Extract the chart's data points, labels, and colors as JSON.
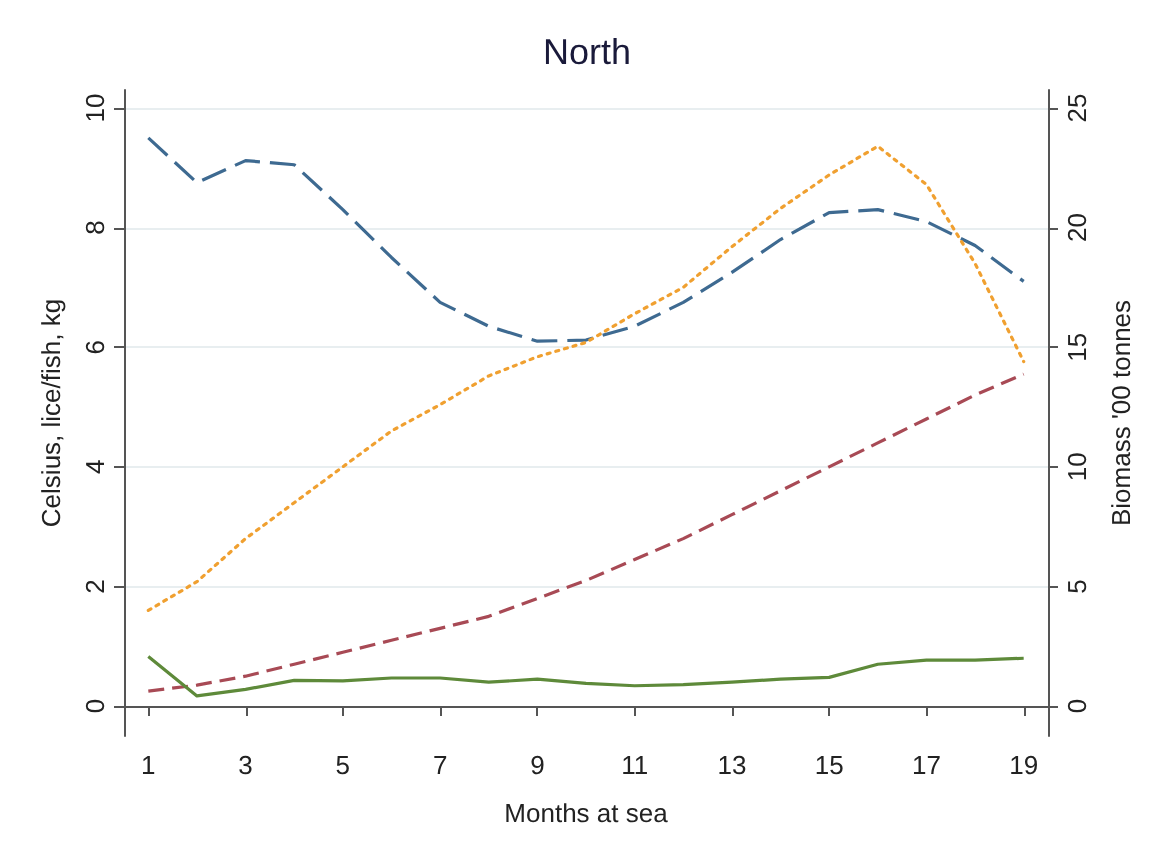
{
  "chart_data": {
    "type": "line",
    "title": "North",
    "xlabel": "Months at sea",
    "ylabel": "Celsius, lice/fish, kg",
    "y2label": "Biomass '00 tonnes",
    "x": [
      1,
      2,
      3,
      4,
      5,
      6,
      7,
      8,
      9,
      10,
      11,
      12,
      13,
      14,
      15,
      16,
      17,
      18,
      19
    ],
    "series": [
      {
        "color": "#3e6a91",
        "line_style": "dashed",
        "values": [
          9.5,
          8.75,
          9.12,
          9.05,
          8.3,
          7.5,
          6.75,
          6.35,
          6.1,
          6.12,
          6.35,
          6.75,
          7.25,
          7.8,
          8.25,
          8.3,
          8.1,
          7.7,
          7.1
        ]
      },
      {
        "color": "#f0a030",
        "line_style": "dotted",
        "axis": "y2",
        "values": [
          4.0,
          5.2,
          7.0,
          8.5,
          10.0,
          11.5,
          12.6,
          13.8,
          14.6,
          15.2,
          16.4,
          17.5,
          19.2,
          20.8,
          22.2,
          23.4,
          21.8,
          18.5,
          14.4
        ]
      },
      {
        "color": "#a84a55",
        "line_style": "dashed",
        "values": [
          0.25,
          0.35,
          0.5,
          0.7,
          0.9,
          1.1,
          1.3,
          1.5,
          1.8,
          2.1,
          2.45,
          2.8,
          3.2,
          3.6,
          4.0,
          4.4,
          4.8,
          5.2,
          5.55
        ]
      },
      {
        "color": "#5e8a3a",
        "line_style": "solid",
        "values": [
          0.83,
          0.17,
          0.28,
          0.43,
          0.42,
          0.47,
          0.47,
          0.4,
          0.45,
          0.38,
          0.34,
          0.36,
          0.4,
          0.45,
          0.48,
          0.7,
          0.77,
          0.77,
          0.8
        ]
      }
    ],
    "xlim": [
      0.5,
      19.5
    ],
    "xticks": [
      1,
      3,
      5,
      7,
      9,
      11,
      13,
      15,
      17,
      19
    ],
    "ylim": [
      -0.5,
      10.3
    ],
    "yticks": [
      0,
      2,
      4,
      6,
      8,
      10
    ],
    "y2lim": [
      -1.25,
      25.75
    ],
    "y2ticks": [
      0,
      5,
      10,
      15,
      20,
      25
    ],
    "grid": "y",
    "marker": "none"
  }
}
